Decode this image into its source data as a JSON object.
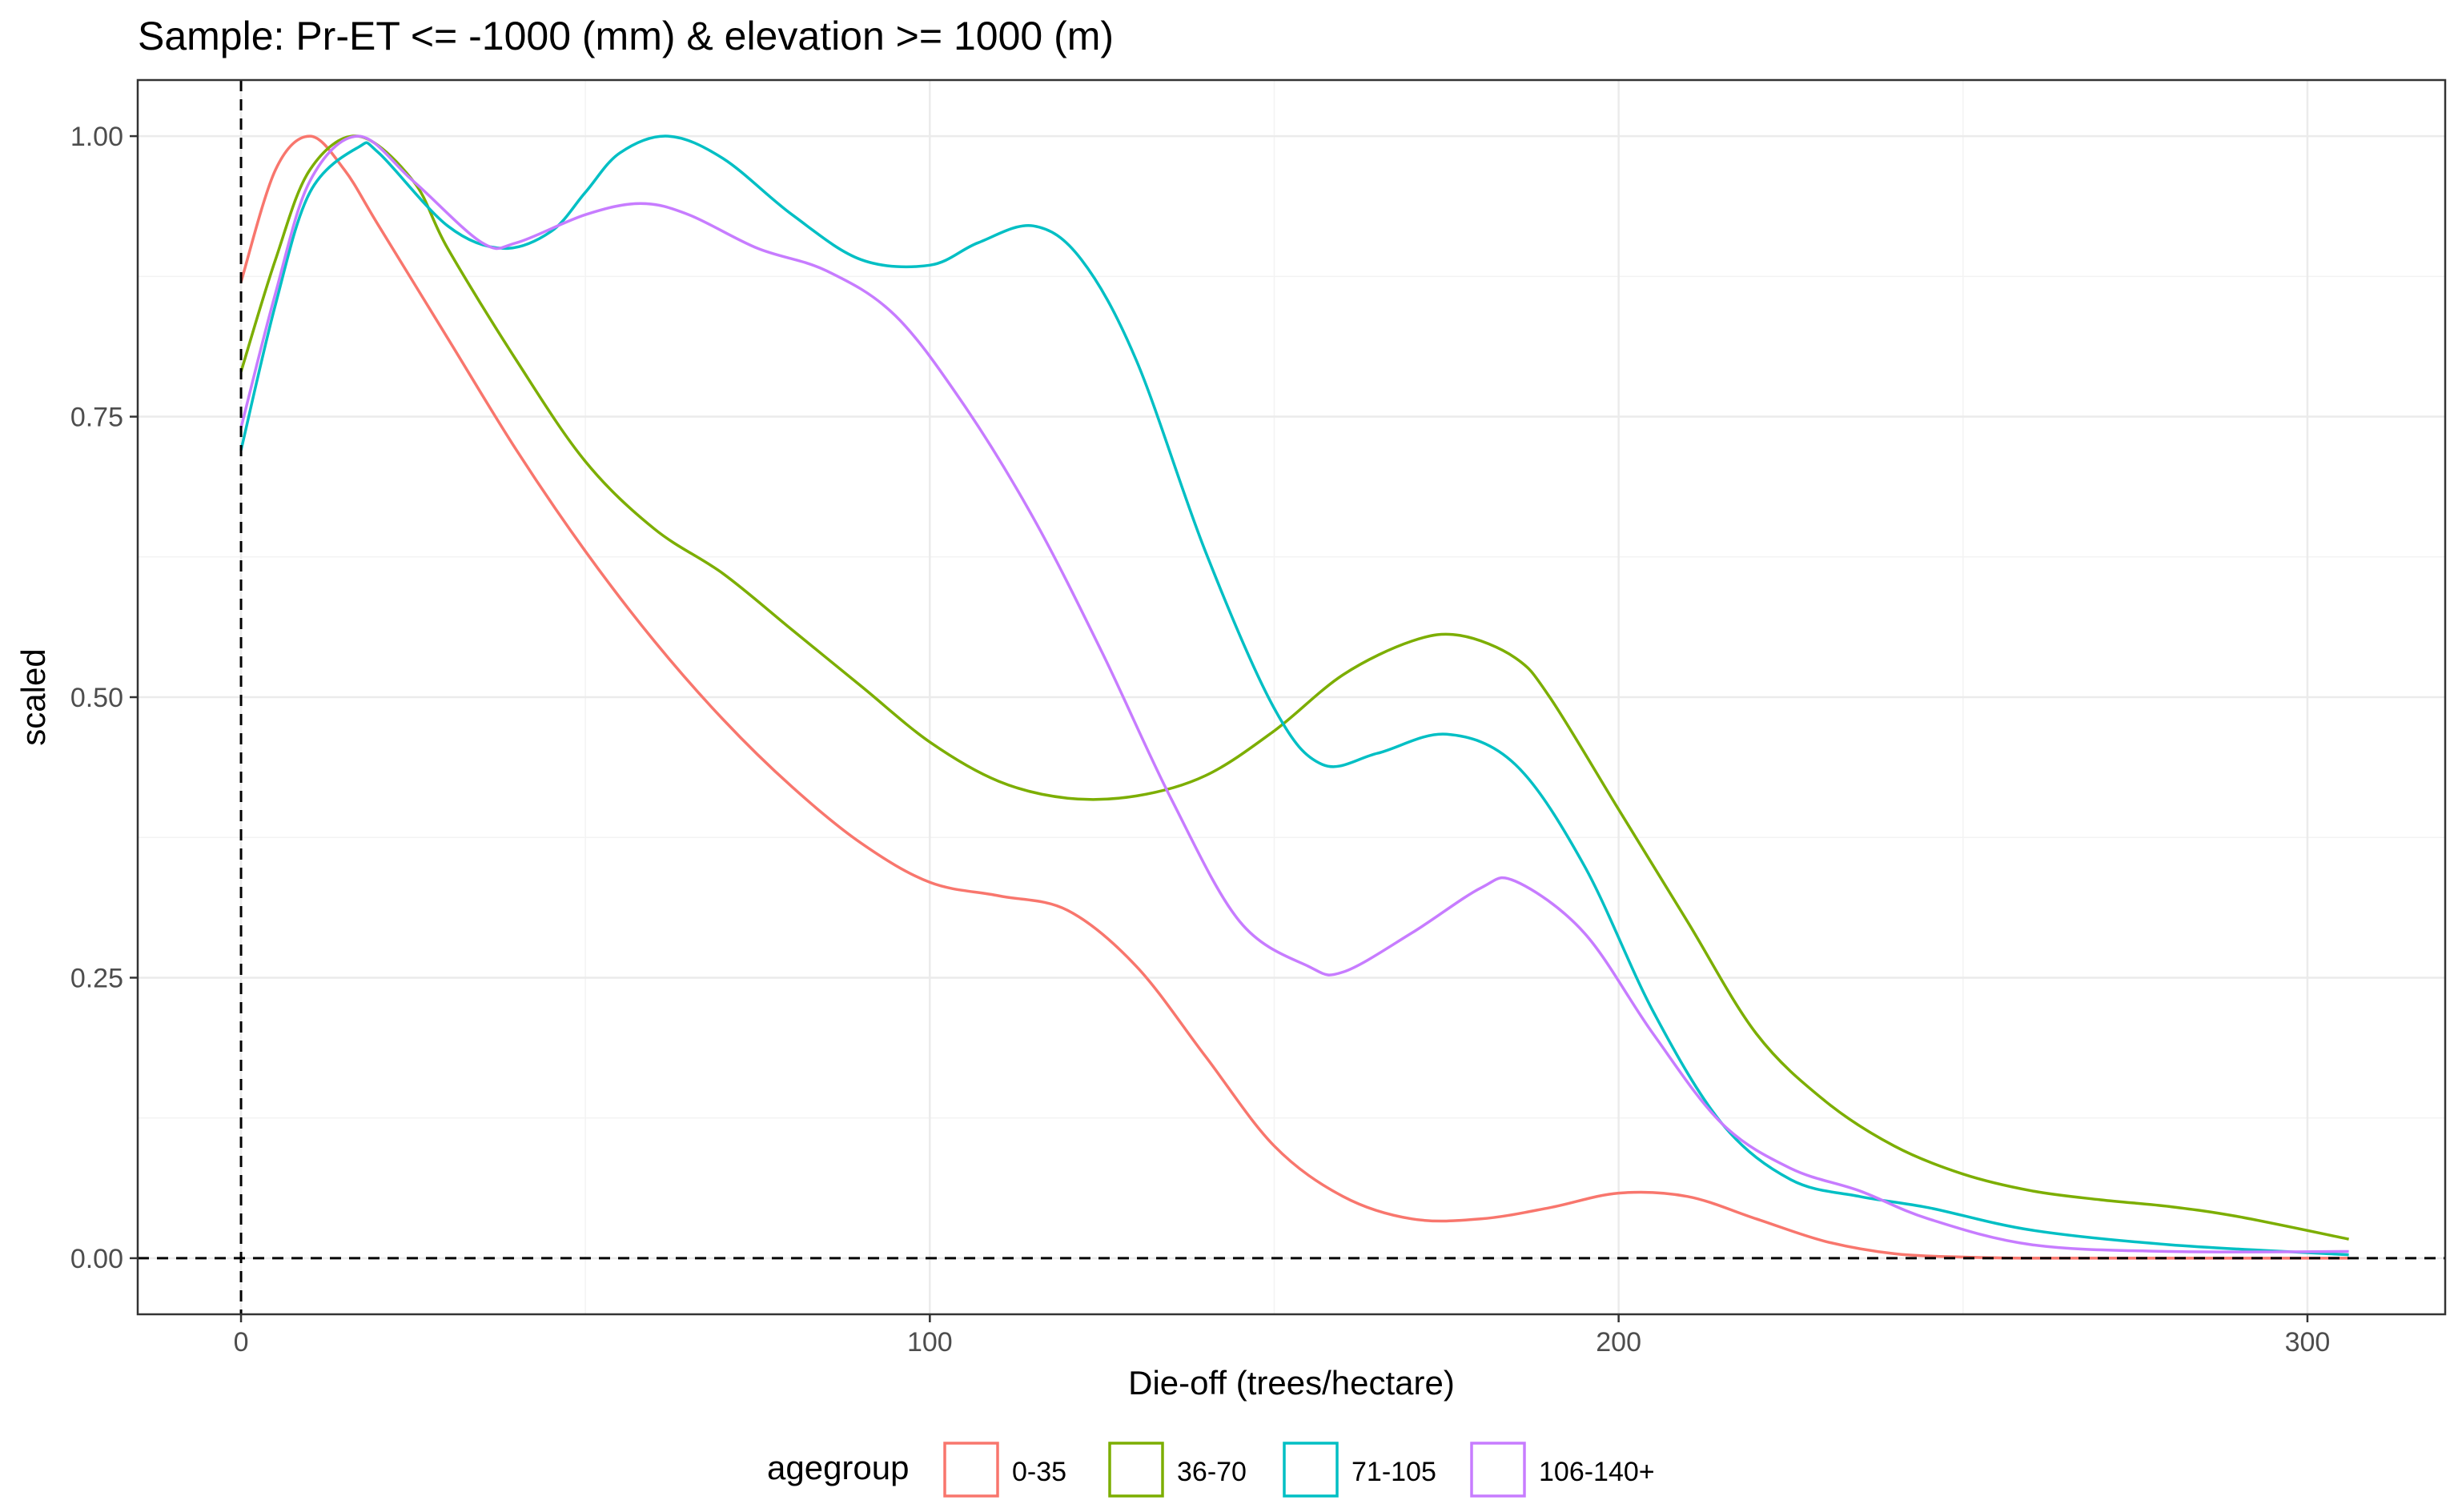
{
  "chart_data": {
    "type": "line",
    "title": "Sample: Pr-ET <= -1000 (mm) & elevation >= 1000 (m)",
    "xlabel": "Die-off (trees/hectare)",
    "ylabel": "scaled",
    "xlim": [
      -15,
      320
    ],
    "ylim": [
      -0.05,
      1.05
    ],
    "x_ticks": [
      0,
      100,
      200,
      300
    ],
    "x_tick_labels": [
      "0",
      "100",
      "200",
      "300"
    ],
    "y_ticks": [
      0,
      0.25,
      0.5,
      0.75,
      1.0
    ],
    "y_tick_labels": [
      "0.00",
      "0.25",
      "0.50",
      "0.75",
      "1.00"
    ],
    "grid": true,
    "reference_lines": {
      "vertical_x": 0,
      "horizontal_y": 0,
      "style": "dashed"
    },
    "legend": {
      "title": "agegroup",
      "position": "bottom"
    },
    "series": [
      {
        "name": "0-35",
        "color": "#F8766D",
        "points": [
          [
            0,
            0.87
          ],
          [
            5,
            0.97
          ],
          [
            10,
            1.0
          ],
          [
            15,
            0.97
          ],
          [
            20,
            0.92
          ],
          [
            30,
            0.82
          ],
          [
            40,
            0.72
          ],
          [
            50,
            0.63
          ],
          [
            60,
            0.55
          ],
          [
            70,
            0.48
          ],
          [
            80,
            0.42
          ],
          [
            90,
            0.37
          ],
          [
            100,
            0.335
          ],
          [
            110,
            0.323
          ],
          [
            120,
            0.31
          ],
          [
            130,
            0.26
          ],
          [
            140,
            0.18
          ],
          [
            150,
            0.1
          ],
          [
            160,
            0.055
          ],
          [
            170,
            0.035
          ],
          [
            180,
            0.035
          ],
          [
            190,
            0.045
          ],
          [
            200,
            0.058
          ],
          [
            210,
            0.055
          ],
          [
            220,
            0.035
          ],
          [
            230,
            0.015
          ],
          [
            240,
            0.004
          ],
          [
            250,
            0.001
          ],
          [
            260,
            0.0
          ],
          [
            280,
            0.0
          ],
          [
            306,
            0.0
          ]
        ]
      },
      {
        "name": "36-70",
        "color": "#7CAE00",
        "points": [
          [
            0,
            0.79
          ],
          [
            5,
            0.89
          ],
          [
            10,
            0.97
          ],
          [
            17,
            1.0
          ],
          [
            25,
            0.96
          ],
          [
            30,
            0.9
          ],
          [
            40,
            0.8
          ],
          [
            50,
            0.71
          ],
          [
            60,
            0.65
          ],
          [
            70,
            0.61
          ],
          [
            80,
            0.56
          ],
          [
            90,
            0.51
          ],
          [
            100,
            0.46
          ],
          [
            110,
            0.425
          ],
          [
            120,
            0.41
          ],
          [
            130,
            0.412
          ],
          [
            140,
            0.43
          ],
          [
            150,
            0.47
          ],
          [
            160,
            0.52
          ],
          [
            170,
            0.55
          ],
          [
            177,
            0.555
          ],
          [
            185,
            0.535
          ],
          [
            190,
            0.5
          ],
          [
            200,
            0.4
          ],
          [
            210,
            0.3
          ],
          [
            220,
            0.2
          ],
          [
            230,
            0.14
          ],
          [
            240,
            0.1
          ],
          [
            250,
            0.075
          ],
          [
            260,
            0.06
          ],
          [
            270,
            0.052
          ],
          [
            280,
            0.046
          ],
          [
            290,
            0.037
          ],
          [
            306,
            0.017
          ]
        ]
      },
      {
        "name": "71-105",
        "color": "#00BFC4",
        "points": [
          [
            0,
            0.72
          ],
          [
            5,
            0.85
          ],
          [
            10,
            0.95
          ],
          [
            17,
            0.99
          ],
          [
            20,
            0.985
          ],
          [
            30,
            0.92
          ],
          [
            38,
            0.9
          ],
          [
            45,
            0.915
          ],
          [
            50,
            0.95
          ],
          [
            55,
            0.985
          ],
          [
            62,
            1.0
          ],
          [
            70,
            0.98
          ],
          [
            80,
            0.93
          ],
          [
            90,
            0.89
          ],
          [
            100,
            0.885
          ],
          [
            107,
            0.905
          ],
          [
            115,
            0.92
          ],
          [
            122,
            0.89
          ],
          [
            130,
            0.8
          ],
          [
            140,
            0.63
          ],
          [
            150,
            0.49
          ],
          [
            157,
            0.44
          ],
          [
            165,
            0.45
          ],
          [
            175,
            0.467
          ],
          [
            185,
            0.44
          ],
          [
            195,
            0.35
          ],
          [
            205,
            0.22
          ],
          [
            215,
            0.12
          ],
          [
            225,
            0.07
          ],
          [
            235,
            0.055
          ],
          [
            245,
            0.045
          ],
          [
            260,
            0.025
          ],
          [
            280,
            0.012
          ],
          [
            306,
            0.003
          ]
        ]
      },
      {
        "name": "106-140+",
        "color": "#C77CFF",
        "points": [
          [
            0,
            0.74
          ],
          [
            5,
            0.86
          ],
          [
            10,
            0.96
          ],
          [
            17,
            1.0
          ],
          [
            25,
            0.96
          ],
          [
            35,
            0.905
          ],
          [
            40,
            0.905
          ],
          [
            50,
            0.93
          ],
          [
            58,
            0.94
          ],
          [
            65,
            0.93
          ],
          [
            75,
            0.9
          ],
          [
            85,
            0.88
          ],
          [
            95,
            0.84
          ],
          [
            105,
            0.76
          ],
          [
            115,
            0.66
          ],
          [
            125,
            0.54
          ],
          [
            135,
            0.41
          ],
          [
            145,
            0.3
          ],
          [
            155,
            0.26
          ],
          [
            160,
            0.255
          ],
          [
            170,
            0.29
          ],
          [
            180,
            0.33
          ],
          [
            185,
            0.336
          ],
          [
            195,
            0.29
          ],
          [
            205,
            0.2
          ],
          [
            215,
            0.12
          ],
          [
            225,
            0.08
          ],
          [
            235,
            0.06
          ],
          [
            245,
            0.035
          ],
          [
            260,
            0.012
          ],
          [
            280,
            0.006
          ],
          [
            306,
            0.006
          ]
        ]
      }
    ]
  }
}
